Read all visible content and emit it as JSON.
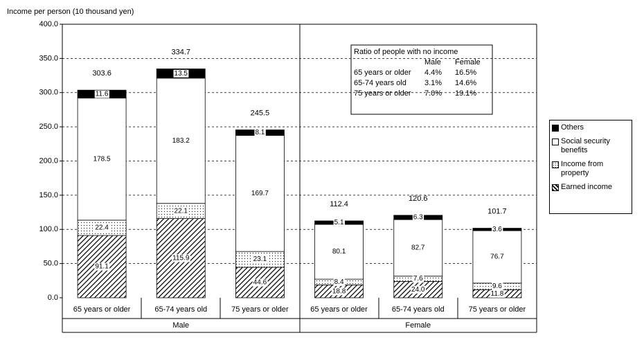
{
  "chart_data": {
    "type": "stacked-bar",
    "y_axis_label": "Income per person (10 thousand yen)",
    "categories": [
      "65 years or older",
      "65-74 years old",
      "75 years or older",
      "65 years or older",
      "65-74 years old",
      "75 years or older"
    ],
    "groups": [
      "Male",
      "Female"
    ],
    "series": [
      {
        "name": "Earned income",
        "color": "#000000",
        "pattern": "hatch",
        "values": [
          91.1,
          115.9,
          44.6,
          18.8,
          24.0,
          11.8
        ],
        "value_labels": [
          "91.1",
          "115.9",
          "44.6",
          "18.8",
          "24.0",
          "11.8"
        ]
      },
      {
        "name": "Income from property",
        "color": "#000000",
        "pattern": "dots",
        "values": [
          22.4,
          22.1,
          23.1,
          8.4,
          7.6,
          9.6
        ]
      },
      {
        "name": "Social security benefits",
        "color": "#ffffff",
        "pattern": "none",
        "values": [
          178.5,
          183.2,
          169.7,
          80.1,
          82.7,
          76.7
        ]
      },
      {
        "name": "Others",
        "color": "#000000",
        "pattern": "solid",
        "values": [
          11.6,
          13.5,
          8.1,
          5.1,
          6.3,
          3.6
        ]
      }
    ],
    "totals": [
      303.6,
      334.7,
      245.5,
      112.4,
      120.6,
      101.7
    ],
    "ylim": [
      0,
      400
    ],
    "yticks": [
      {
        "value": 0,
        "label": "0.0"
      },
      {
        "value": 50,
        "label": "50.0"
      },
      {
        "value": 100,
        "label": "100.0"
      },
      {
        "value": 150,
        "label": "150.0"
      },
      {
        "value": 200,
        "label": "200.0"
      },
      {
        "value": 250,
        "label": "250.0"
      },
      {
        "value": 300,
        "label": "300.0"
      },
      {
        "value": 350,
        "label": "350.0"
      },
      {
        "value": 400,
        "label": "400.0"
      }
    ],
    "grid": true,
    "legend_position": "right",
    "inset_table": {
      "title": "Ratio of people with no income",
      "columns": [
        "Male",
        "Female"
      ],
      "rows": [
        [
          "65 years or older",
          "4.4%",
          "16.5%"
        ],
        [
          "65-74 years old",
          "3.1%",
          "14.6%"
        ],
        [
          "75 years or older",
          "7.0%",
          "19.1%"
        ]
      ]
    }
  }
}
